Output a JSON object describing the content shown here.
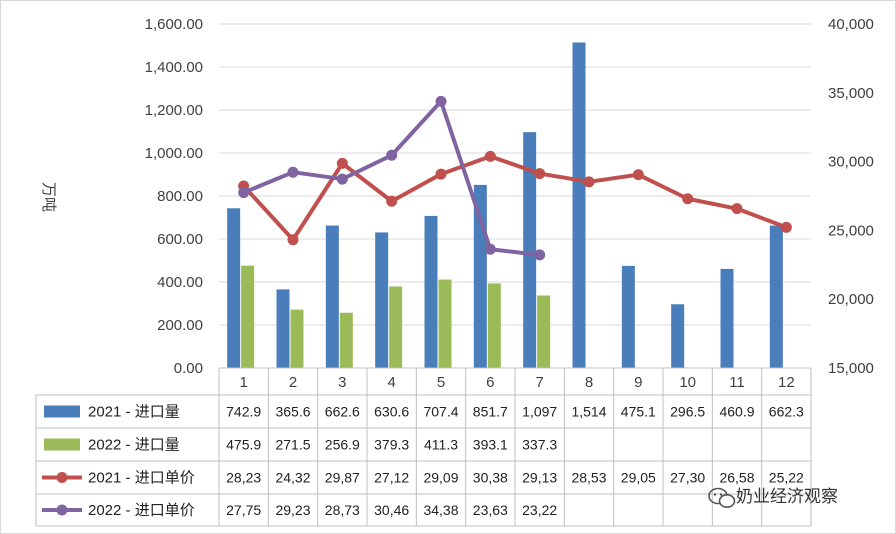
{
  "chart_data": {
    "type": "bar",
    "categories": [
      "1",
      "2",
      "3",
      "4",
      "5",
      "6",
      "7",
      "8",
      "9",
      "10",
      "11",
      "12"
    ],
    "ylabel": "万吨",
    "ylim": [
      0,
      1600
    ],
    "y_ticks": [
      "0.00",
      "200.00",
      "400.00",
      "600.00",
      "800.00",
      "1,000.00",
      "1,200.00",
      "1,400.00",
      "1,600.00"
    ],
    "y2lim": [
      15000,
      40000
    ],
    "y2_ticks": [
      "15,000",
      "20,000",
      "25,000",
      "30,000",
      "35,000",
      "40,000"
    ],
    "series": [
      {
        "name": "2021 - 进口量",
        "kind": "bar",
        "axis": "left",
        "color": "#4a7ebb",
        "values": [
          742.9,
          365.6,
          662.6,
          630.6,
          707.4,
          851.7,
          1097,
          1514,
          475.1,
          296.5,
          460.9,
          662.3
        ],
        "labels": [
          "742.9",
          "365.6",
          "662.6",
          "630.6",
          "707.4",
          "851.7",
          "1,097",
          "1,514",
          "475.1",
          "296.5",
          "460.9",
          "662.3"
        ]
      },
      {
        "name": "2022 - 进口量",
        "kind": "bar",
        "axis": "left",
        "color": "#9bbb59",
        "values": [
          475.9,
          271.5,
          256.9,
          379.3,
          411.3,
          393.1,
          337.3,
          null,
          null,
          null,
          null,
          null
        ],
        "labels": [
          "475.9",
          "271.5",
          "256.9",
          "379.3",
          "411.3",
          "393.1",
          "337.3",
          "",
          "",
          "",
          "",
          ""
        ]
      },
      {
        "name": "2021 - 进口单价",
        "kind": "line",
        "axis": "right",
        "color": "#c0504d",
        "values": [
          28230,
          24320,
          29870,
          27120,
          29090,
          30380,
          29130,
          28530,
          29050,
          27300,
          26580,
          25220
        ],
        "labels": [
          "28,23",
          "24,32",
          "29,87",
          "27,12",
          "29,09",
          "30,38",
          "29,13",
          "28,53",
          "29,05",
          "27,30",
          "26,58",
          "25,22"
        ]
      },
      {
        "name": "2022 - 进口单价",
        "kind": "line",
        "axis": "right",
        "color": "#8064a2",
        "values": [
          27750,
          29230,
          28730,
          30460,
          34380,
          23630,
          23220,
          null,
          null,
          null,
          null,
          null
        ],
        "labels": [
          "27,75",
          "29,23",
          "28,73",
          "30,46",
          "34,38",
          "23,63",
          "23,22",
          "",
          "",
          "",
          "",
          ""
        ]
      }
    ],
    "grid": "horizontal",
    "legend": "data-table"
  },
  "watermark": {
    "text": "奶业经济观察",
    "icon": "wechat-icon"
  }
}
